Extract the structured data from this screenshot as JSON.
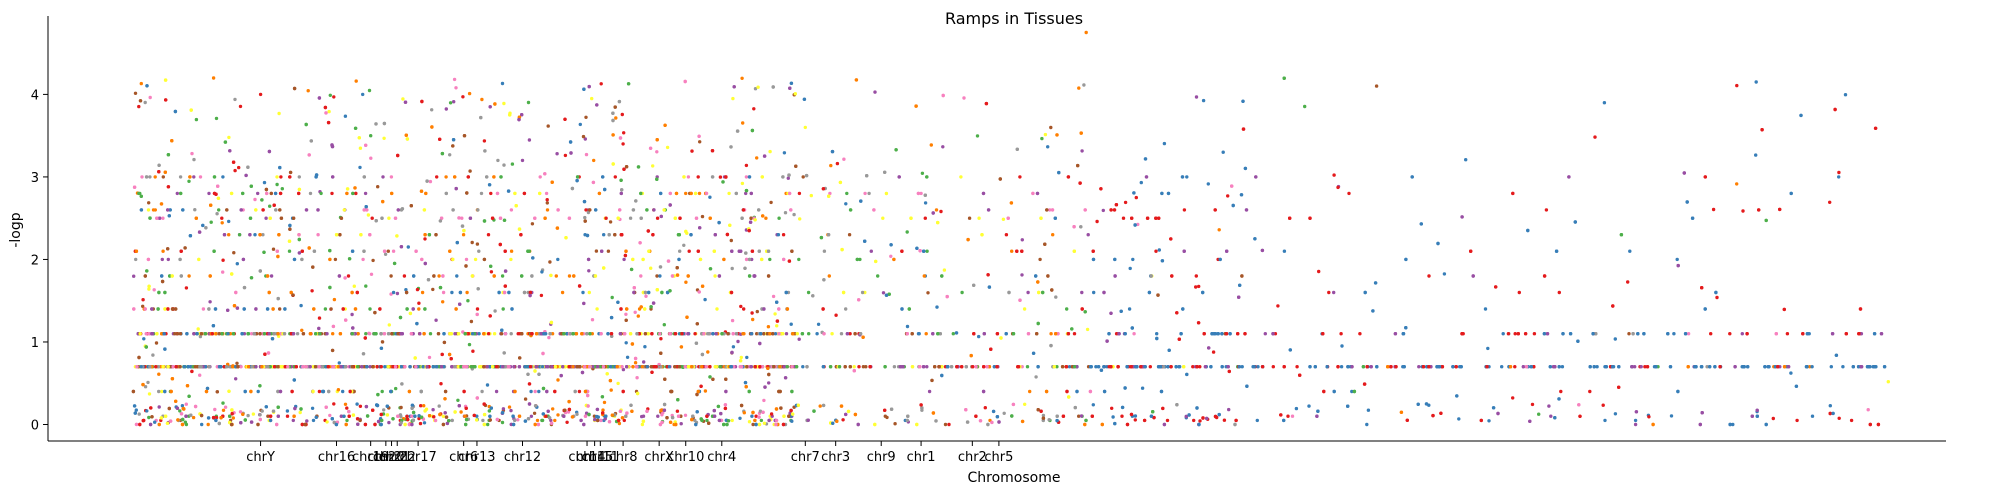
{
  "chart_data": {
    "type": "scatter",
    "title": "Ramps in Tissues",
    "xlabel": "Chromosome",
    "ylabel": "-logp",
    "ylim": [
      -0.2,
      4.95
    ],
    "yticks": [
      0,
      1,
      2,
      3,
      4
    ],
    "grid": false,
    "legend": "none",
    "x_tick_labels": [
      {
        "label": "chrY",
        "x": 0.112
      },
      {
        "label": "chr16",
        "x": 0.152
      },
      {
        "label": "chr19",
        "x": 0.17
      },
      {
        "label": "chr20",
        "x": 0.178
      },
      {
        "label": "chr21",
        "x": 0.181
      },
      {
        "label": "chr22",
        "x": 0.184
      },
      {
        "label": "chr17",
        "x": 0.195
      },
      {
        "label": "chr6",
        "x": 0.219
      },
      {
        "label": "chr13",
        "x": 0.226
      },
      {
        "label": "chr12",
        "x": 0.25
      },
      {
        "label": "chr14",
        "x": 0.284
      },
      {
        "label": "chr15",
        "x": 0.288
      },
      {
        "label": "chr11",
        "x": 0.291
      },
      {
        "label": "chr8",
        "x": 0.303
      },
      {
        "label": "chrX",
        "x": 0.322
      },
      {
        "label": "chr10",
        "x": 0.336
      },
      {
        "label": "chr4",
        "x": 0.355
      },
      {
        "label": "chr7",
        "x": 0.399
      },
      {
        "label": "chr3",
        "x": 0.415
      },
      {
        "label": "chr9",
        "x": 0.439
      },
      {
        "label": "chr1",
        "x": 0.46
      },
      {
        "label": "chr2",
        "x": 0.487
      },
      {
        "label": "chr5",
        "x": 0.501
      }
    ],
    "palette": [
      "#e41a1c",
      "#377eb8",
      "#4daf4a",
      "#984ea3",
      "#ff7f00",
      "#ffff33",
      "#a65628",
      "#f781bf",
      "#999999"
    ],
    "series_note_colors": "points colored by tissue (Set1 palette)",
    "sample_points": [
      {
        "x": 0.547,
        "y": 4.75,
        "color": "#ff7f00"
      },
      {
        "x": 0.112,
        "y": 4.0,
        "color": "#e41a1c"
      },
      {
        "x": 0.17,
        "y": 3.5,
        "color": "#4daf4a"
      },
      {
        "x": 0.25,
        "y": 3.2,
        "color": "#984ea3"
      },
      {
        "x": 0.303,
        "y": 3.4,
        "color": "#e41a1c"
      },
      {
        "x": 0.399,
        "y": 3.6,
        "color": "#ffff33"
      },
      {
        "x": 0.46,
        "y": 2.8,
        "color": "#f781bf"
      },
      {
        "x": 0.6,
        "y": 3.0,
        "color": "#377eb8"
      },
      {
        "x": 0.7,
        "y": 4.1,
        "color": "#a65628"
      },
      {
        "x": 0.82,
        "y": 3.9,
        "color": "#377eb8"
      },
      {
        "x": 0.9,
        "y": 4.15,
        "color": "#377eb8"
      },
      {
        "x": 0.96,
        "y": 0.7,
        "color": "#377eb8"
      }
    ]
  }
}
